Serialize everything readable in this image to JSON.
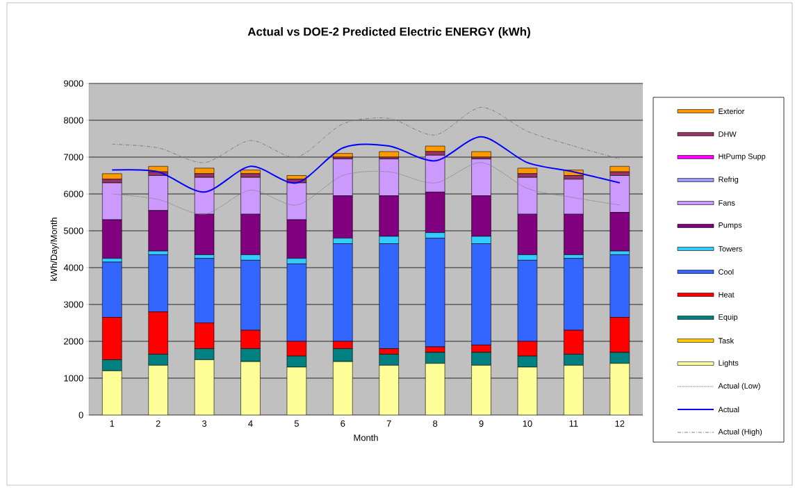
{
  "chart_data": {
    "type": "bar",
    "stacked": true,
    "title": "Actual vs DOE-2 Predicted Electric ENERGY (kWh)",
    "xlabel": "Month",
    "ylabel": "kWh/Day/Month",
    "categories": [
      "1",
      "2",
      "3",
      "4",
      "5",
      "6",
      "7",
      "8",
      "9",
      "10",
      "11",
      "12"
    ],
    "ylim": [
      0,
      9000
    ],
    "yticks": [
      0,
      1000,
      2000,
      3000,
      4000,
      5000,
      6000,
      7000,
      8000,
      9000
    ],
    "grid": "y",
    "legend": "right",
    "series": [
      {
        "name": "Lights",
        "color": "#ffff99",
        "values": [
          1200,
          1350,
          1500,
          1450,
          1300,
          1450,
          1350,
          1400,
          1350,
          1300,
          1350,
          1400
        ]
      },
      {
        "name": "Task",
        "color": "#ffcc00",
        "values": [
          null,
          null,
          null,
          null,
          null,
          null,
          null,
          null,
          null,
          null,
          null,
          null
        ]
      },
      {
        "name": "Equip",
        "color": "#008080",
        "values": [
          300,
          300,
          300,
          350,
          300,
          350,
          300,
          300,
          350,
          300,
          300,
          300
        ]
      },
      {
        "name": "Heat",
        "color": "#ff0000",
        "values": [
          1150,
          1150,
          700,
          500,
          400,
          200,
          150,
          150,
          200,
          400,
          650,
          950
        ]
      },
      {
        "name": "Cool",
        "color": "#3366ff",
        "values": [
          1500,
          1550,
          1750,
          1900,
          2100,
          2650,
          2850,
          2950,
          2750,
          2200,
          1950,
          1700
        ]
      },
      {
        "name": "Towers",
        "color": "#33ccff",
        "values": [
          100,
          100,
          100,
          150,
          150,
          150,
          200,
          150,
          200,
          150,
          100,
          100
        ]
      },
      {
        "name": "Pumps",
        "color": "#800080",
        "values": [
          1050,
          1100,
          1100,
          1100,
          1050,
          1150,
          1100,
          1100,
          1100,
          1100,
          1100,
          1050
        ]
      },
      {
        "name": "Fans",
        "color": "#cc99ff",
        "values": [
          1000,
          950,
          1000,
          1000,
          1000,
          1000,
          1000,
          1000,
          1000,
          1000,
          950,
          1000
        ]
      },
      {
        "name": "Refrig",
        "color": "#9999ff",
        "values": [
          null,
          null,
          null,
          null,
          null,
          null,
          null,
          null,
          null,
          null,
          null,
          null
        ]
      },
      {
        "name": "HtPump Supp",
        "color": "#ff00ff",
        "values": [
          null,
          null,
          null,
          null,
          null,
          null,
          null,
          null,
          null,
          null,
          null,
          null
        ]
      },
      {
        "name": "DHW",
        "color": "#993366",
        "values": [
          100,
          100,
          100,
          100,
          100,
          50,
          50,
          100,
          50,
          100,
          100,
          100
        ]
      },
      {
        "name": "Exterior",
        "color": "#ff9900",
        "values": [
          150,
          150,
          150,
          100,
          100,
          100,
          150,
          150,
          150,
          150,
          150,
          150
        ]
      },
      {
        "name": "Actual (Low)",
        "type": "line",
        "line_style": "dotted",
        "color": "#808080",
        "values": [
          6000,
          5850,
          5450,
          6100,
          5700,
          6500,
          6600,
          6300,
          6850,
          6150,
          5900,
          5700
        ]
      },
      {
        "name": "Actual",
        "type": "line",
        "line_style": "solid",
        "color": "#0000ff",
        "values": [
          6650,
          6600,
          6050,
          6750,
          6300,
          7250,
          7300,
          6900,
          7550,
          6850,
          6600,
          6300
        ]
      },
      {
        "name": "Actual (High)",
        "type": "line",
        "line_style": "dashed",
        "color": "#808080",
        "values": [
          7350,
          7250,
          6850,
          7450,
          7000,
          7900,
          8050,
          7600,
          8350,
          7700,
          7300,
          6950
        ]
      }
    ]
  }
}
